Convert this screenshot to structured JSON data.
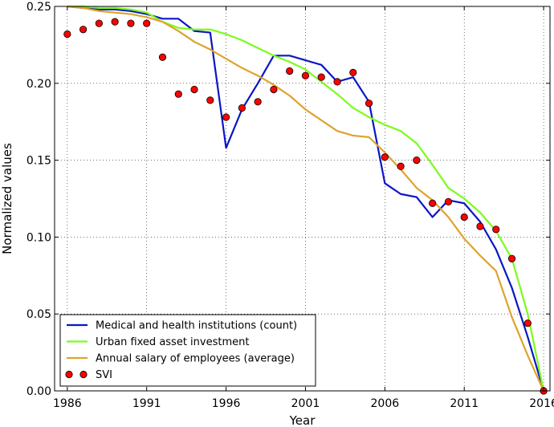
{
  "chart_data": {
    "type": "line",
    "title": "",
    "xlabel": "Year",
    "ylabel": "Normalized values",
    "xlim": [
      1985.2,
      2016.4
    ],
    "ylim": [
      0,
      0.25
    ],
    "grid": true,
    "legend_position": "bottom-left",
    "x_ticks": [
      1986,
      1991,
      1996,
      2001,
      2006,
      2011,
      2016
    ],
    "x_tick_labels": [
      "1986",
      "1991",
      "1996",
      "2001",
      "2006",
      "2011",
      "2016"
    ],
    "y_ticks": [
      0,
      0.05,
      0.1,
      0.15,
      0.2,
      0.25
    ],
    "y_tick_labels": [
      "0.00",
      "0.05",
      "0.10",
      "0.15",
      "0.20",
      "0.25"
    ],
    "x": [
      1986,
      1987,
      1988,
      1989,
      1990,
      1991,
      1992,
      1993,
      1994,
      1995,
      1996,
      1997,
      1998,
      1999,
      2000,
      2001,
      2002,
      2003,
      2004,
      2005,
      2006,
      2007,
      2008,
      2009,
      2010,
      2011,
      2012,
      2013,
      2014,
      2015,
      2016
    ],
    "series": [
      {
        "name": "Medical and health institutions (count)",
        "style": "line",
        "color": "#0a16c4",
        "values": [
          0.25,
          0.249,
          0.248,
          0.248,
          0.247,
          0.245,
          0.242,
          0.242,
          0.234,
          0.233,
          0.158,
          0.183,
          0.2,
          0.218,
          0.218,
          0.215,
          0.212,
          0.201,
          0.204,
          0.188,
          0.135,
          0.128,
          0.126,
          0.113,
          0.124,
          0.122,
          0.11,
          0.092,
          0.067,
          0.035,
          0.0
        ]
      },
      {
        "name": "Urban fixed asset investment",
        "style": "line",
        "color": "#7cfc1a",
        "values": [
          0.25,
          0.25,
          0.249,
          0.249,
          0.248,
          0.246,
          0.24,
          0.236,
          0.235,
          0.235,
          0.232,
          0.228,
          0.223,
          0.218,
          0.214,
          0.209,
          0.201,
          0.193,
          0.184,
          0.178,
          0.173,
          0.169,
          0.161,
          0.147,
          0.132,
          0.125,
          0.116,
          0.104,
          0.086,
          0.05,
          0.0
        ]
      },
      {
        "name": "Annual salary of employees (average)",
        "style": "line",
        "color": "#dea32c",
        "values": [
          0.25,
          0.249,
          0.247,
          0.246,
          0.245,
          0.243,
          0.24,
          0.234,
          0.227,
          0.222,
          0.216,
          0.21,
          0.205,
          0.199,
          0.192,
          0.183,
          0.176,
          0.169,
          0.166,
          0.165,
          0.155,
          0.144,
          0.132,
          0.124,
          0.113,
          0.099,
          0.088,
          0.078,
          0.048,
          0.023,
          0.0
        ]
      },
      {
        "name": "SVI",
        "style": "scatter",
        "color": "#ff0000",
        "values": [
          0.232,
          0.235,
          0.239,
          0.24,
          0.239,
          0.239,
          0.217,
          0.193,
          0.196,
          0.189,
          0.178,
          0.184,
          0.188,
          0.196,
          0.208,
          0.205,
          0.204,
          0.201,
          0.207,
          0.187,
          0.152,
          0.146,
          0.15,
          0.122,
          0.123,
          0.113,
          0.107,
          0.105,
          0.086,
          0.044,
          0.0
        ]
      }
    ]
  }
}
